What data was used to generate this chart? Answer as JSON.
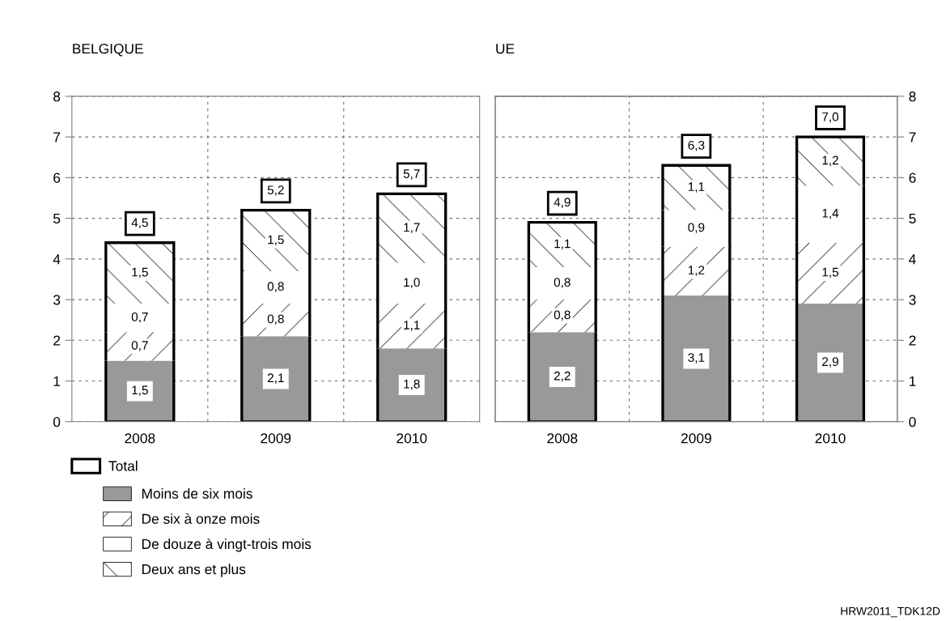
{
  "chart_data": [
    {
      "type": "bar",
      "title": "BELGIQUE",
      "categories": [
        "2008",
        "2009",
        "2010"
      ],
      "stacked": true,
      "ylim": [
        0,
        8
      ],
      "yticks": [
        0,
        1,
        2,
        3,
        4,
        5,
        6,
        7,
        8
      ],
      "grid": true,
      "legend": "bottom left",
      "legend_title": "Total",
      "totals": [
        "4,5",
        "5,2",
        "5,7"
      ],
      "series": [
        {
          "name": "Moins de six mois",
          "color": "#999999",
          "values": [
            1.5,
            2.1,
            1.8
          ],
          "value_labels": [
            "1,5",
            "2,1",
            "1,8"
          ]
        },
        {
          "name": "De six à onze mois",
          "color": "#000000",
          "values": [
            0.7,
            0.8,
            1.1
          ],
          "value_labels": [
            "0,7",
            "0,8",
            "1,1"
          ]
        },
        {
          "name": "De douze à vingt-trois mois",
          "color": "#ffffff",
          "values": [
            0.7,
            0.8,
            1.0
          ],
          "value_labels": [
            "0,7",
            "0,8",
            "1,0"
          ]
        },
        {
          "name": "Deux ans et plus",
          "color": "#000000",
          "values": [
            1.5,
            1.5,
            1.7
          ],
          "value_labels": [
            "1,5",
            "1,5",
            "1,7"
          ]
        }
      ]
    },
    {
      "type": "bar",
      "title": "UE",
      "categories": [
        "2008",
        "2009",
        "2010"
      ],
      "stacked": true,
      "y2lim": [
        0,
        8
      ],
      "y2ticks": [
        0,
        1,
        2,
        3,
        4,
        5,
        6,
        7,
        8
      ],
      "grid": true,
      "totals": [
        "4,9",
        "6,3",
        "7,0"
      ],
      "annotations": [
        "HRW2011_TDK12D"
      ],
      "series": [
        {
          "color": "#999999",
          "axis": "y2",
          "values": [
            2.2,
            3.1,
            2.9
          ],
          "value_labels": [
            "2,2",
            "3,1",
            "2,9"
          ]
        },
        {
          "color": "#000000",
          "axis": "y2",
          "values": [
            0.8,
            1.2,
            1.5
          ],
          "value_labels": [
            "0,8",
            "1,2",
            "1,5"
          ]
        },
        {
          "color": "#ffffff",
          "axis": "y2",
          "values": [
            0.8,
            0.9,
            1.4
          ],
          "value_labels": [
            "0,8",
            "0,9",
            "1,4"
          ]
        },
        {
          "color": "#000000",
          "axis": "y2",
          "values": [
            1.1,
            1.1,
            1.2
          ],
          "value_labels": [
            "1,1",
            "1,1",
            "1,2"
          ]
        }
      ]
    }
  ]
}
